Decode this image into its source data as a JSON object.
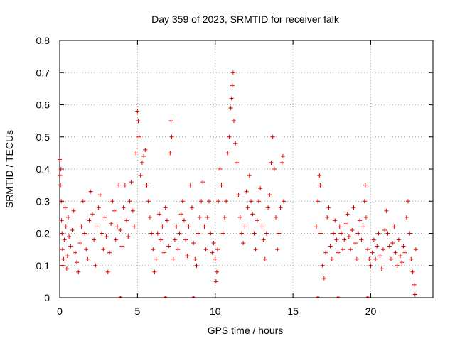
{
  "chart_data": {
    "type": "scatter",
    "title": "Day 359 of 2023, SRMTID for receiver falk",
    "xlabel": "GPS time / hours",
    "ylabel": "SRMTID / TECUs",
    "xlim": [
      0,
      24
    ],
    "ylim": [
      0,
      0.8
    ],
    "x_ticks": [
      0,
      5,
      10,
      15,
      20
    ],
    "y_ticks": [
      0,
      0.1,
      0.2,
      0.3,
      0.4,
      0.5,
      0.6,
      0.7,
      0.8
    ],
    "x_tick_labels": [
      "0",
      "5",
      "10",
      "15",
      "20"
    ],
    "y_tick_labels": [
      "0",
      "0.1",
      "0.2",
      "0.3",
      "0.4",
      "0.5",
      "0.6",
      "0.7",
      "0.8"
    ],
    "grid": true,
    "marker": "+",
    "color": "#e00000",
    "series": [
      {
        "name": "SRMTID",
        "points": [
          [
            0.0,
            0.43
          ],
          [
            0.02,
            0.38
          ],
          [
            0.05,
            0.35
          ],
          [
            0.08,
            0.4
          ],
          [
            0.1,
            0.3
          ],
          [
            0.12,
            0.24
          ],
          [
            0.15,
            0.2
          ],
          [
            0.18,
            0.15
          ],
          [
            0.2,
            0.1
          ],
          [
            0.25,
            0.12
          ],
          [
            0.3,
            0.18
          ],
          [
            0.35,
            0.28
          ],
          [
            0.4,
            0.22
          ],
          [
            0.45,
            0.09
          ],
          [
            0.5,
            0.13
          ],
          [
            0.55,
            0.25
          ],
          [
            0.6,
            0.19
          ],
          [
            0.7,
            0.16
          ],
          [
            0.8,
            0.21
          ],
          [
            0.9,
            0.27
          ],
          [
            1.0,
            0.14
          ],
          [
            1.1,
            0.11
          ],
          [
            1.2,
            0.08
          ],
          [
            1.3,
            0.17
          ],
          [
            1.4,
            0.22
          ],
          [
            1.5,
            0.3
          ],
          [
            1.6,
            0.2
          ],
          [
            1.7,
            0.15
          ],
          [
            1.8,
            0.12
          ],
          [
            1.9,
            0.24
          ],
          [
            2.0,
            0.33
          ],
          [
            2.1,
            0.26
          ],
          [
            2.2,
            0.18
          ],
          [
            2.3,
            0.1
          ],
          [
            2.4,
            0.22
          ],
          [
            2.5,
            0.28
          ],
          [
            2.6,
            0.32
          ],
          [
            2.7,
            0.2
          ],
          [
            2.8,
            0.15
          ],
          [
            2.9,
            0.25
          ],
          [
            3.0,
            0.19
          ],
          [
            3.1,
            0.08
          ],
          [
            3.2,
            0.14
          ],
          [
            3.3,
            0.23
          ],
          [
            3.4,
            0.3
          ],
          [
            3.5,
            0.27
          ],
          [
            3.6,
            0.18
          ],
          [
            3.7,
            0.22
          ],
          [
            3.8,
            0.35
          ],
          [
            3.9,
            0.21
          ],
          [
            4.0,
            0.16
          ],
          [
            4.1,
            0.28
          ],
          [
            4.2,
            0.35
          ],
          [
            4.3,
            0.24
          ],
          [
            4.4,
            0.19
          ],
          [
            4.5,
            0.3
          ],
          [
            4.6,
            0.36
          ],
          [
            4.7,
            0.27
          ],
          [
            4.8,
            0.22
          ],
          [
            4.9,
            0.45
          ],
          [
            5.0,
            0.58
          ],
          [
            5.05,
            0.55
          ],
          [
            5.1,
            0.5
          ],
          [
            5.2,
            0.38
          ],
          [
            5.3,
            0.42
          ],
          [
            5.4,
            0.44
          ],
          [
            5.5,
            0.46
          ],
          [
            5.6,
            0.35
          ],
          [
            5.7,
            0.3
          ],
          [
            5.8,
            0.25
          ],
          [
            5.9,
            0.2
          ],
          [
            6.0,
            0.15
          ],
          [
            6.1,
            0.08
          ],
          [
            6.2,
            0.12
          ],
          [
            6.3,
            0.2
          ],
          [
            6.4,
            0.26
          ],
          [
            6.5,
            0.18
          ],
          [
            6.6,
            0.22
          ],
          [
            6.7,
            0.14
          ],
          [
            6.8,
            0.28
          ],
          [
            6.9,
            0.24
          ],
          [
            7.0,
            0.16
          ],
          [
            7.1,
            0.45
          ],
          [
            7.15,
            0.55
          ],
          [
            7.2,
            0.5
          ],
          [
            7.3,
            0.12
          ],
          [
            7.4,
            0.18
          ],
          [
            7.5,
            0.22
          ],
          [
            7.6,
            0.15
          ],
          [
            7.7,
            0.2
          ],
          [
            7.8,
            0.26
          ],
          [
            7.9,
            0.3
          ],
          [
            8.0,
            0.24
          ],
          [
            8.1,
            0.18
          ],
          [
            8.2,
            0.13
          ],
          [
            8.3,
            0.22
          ],
          [
            8.4,
            0.35
          ],
          [
            8.5,
            0.28
          ],
          [
            8.6,
            0.17
          ],
          [
            8.7,
            0.12
          ],
          [
            8.8,
            0.1
          ],
          [
            8.9,
            0.2
          ],
          [
            9.0,
            0.25
          ],
          [
            9.1,
            0.3
          ],
          [
            9.2,
            0.36
          ],
          [
            9.3,
            0.22
          ],
          [
            9.4,
            0.15
          ],
          [
            9.5,
            0.25
          ],
          [
            9.6,
            0.3
          ],
          [
            9.7,
            0.2
          ],
          [
            9.8,
            0.14
          ],
          [
            9.9,
            0.17
          ],
          [
            10.0,
            0.12
          ],
          [
            10.05,
            0.05
          ],
          [
            10.1,
            0.08
          ],
          [
            10.15,
            0.15
          ],
          [
            10.2,
            0.3
          ],
          [
            10.3,
            0.4
          ],
          [
            10.4,
            0.35
          ],
          [
            10.5,
            0.2
          ],
          [
            10.6,
            0.25
          ],
          [
            10.7,
            0.3
          ],
          [
            10.8,
            0.45
          ],
          [
            10.9,
            0.5
          ],
          [
            11.0,
            0.59
          ],
          [
            11.05,
            0.62
          ],
          [
            11.1,
            0.66
          ],
          [
            11.15,
            0.7
          ],
          [
            11.2,
            0.55
          ],
          [
            11.3,
            0.48
          ],
          [
            11.4,
            0.42
          ],
          [
            11.5,
            0.32
          ],
          [
            11.6,
            0.25
          ],
          [
            11.7,
            0.2
          ],
          [
            11.8,
            0.17
          ],
          [
            11.9,
            0.22
          ],
          [
            12.0,
            0.33
          ],
          [
            12.1,
            0.28
          ],
          [
            12.2,
            0.38
          ],
          [
            12.3,
            0.3
          ],
          [
            12.4,
            0.26
          ],
          [
            12.5,
            0.2
          ],
          [
            12.6,
            0.15
          ],
          [
            12.7,
            0.24
          ],
          [
            12.8,
            0.3
          ],
          [
            12.9,
            0.34
          ],
          [
            13.0,
            0.22
          ],
          [
            13.1,
            0.18
          ],
          [
            13.2,
            0.12
          ],
          [
            13.3,
            0.2
          ],
          [
            13.4,
            0.28
          ],
          [
            13.5,
            0.32
          ],
          [
            13.6,
            0.42
          ],
          [
            13.7,
            0.5
          ],
          [
            13.8,
            0.4
          ],
          [
            13.9,
            0.25
          ],
          [
            14.0,
            0.15
          ],
          [
            14.1,
            0.2
          ],
          [
            14.2,
            0.28
          ],
          [
            14.3,
            0.42
          ],
          [
            14.35,
            0.44
          ],
          [
            14.4,
            0.3
          ],
          [
            16.5,
            0.22
          ],
          [
            16.6,
            0.3
          ],
          [
            16.7,
            0.38
          ],
          [
            16.75,
            0.35
          ],
          [
            16.8,
            0.2
          ],
          [
            16.9,
            0.1
          ],
          [
            17.0,
            0.06
          ],
          [
            17.1,
            0.14
          ],
          [
            17.2,
            0.25
          ],
          [
            17.3,
            0.28
          ],
          [
            17.4,
            0.16
          ],
          [
            17.5,
            0.12
          ],
          [
            17.6,
            0.2
          ],
          [
            17.7,
            0.24
          ],
          [
            17.8,
            0.18
          ],
          [
            17.9,
            0.14
          ],
          [
            18.0,
            0.22
          ],
          [
            18.1,
            0.2
          ],
          [
            18.2,
            0.15
          ],
          [
            18.3,
            0.18
          ],
          [
            18.4,
            0.23
          ],
          [
            18.5,
            0.26
          ],
          [
            18.6,
            0.19
          ],
          [
            18.7,
            0.15
          ],
          [
            18.8,
            0.21
          ],
          [
            18.9,
            0.28
          ],
          [
            19.0,
            0.17
          ],
          [
            19.1,
            0.12
          ],
          [
            19.2,
            0.2
          ],
          [
            19.3,
            0.24
          ],
          [
            19.4,
            0.18
          ],
          [
            19.5,
            0.22
          ],
          [
            19.6,
            0.3
          ],
          [
            19.65,
            0.35
          ],
          [
            19.7,
            0.25
          ],
          [
            19.8,
            0.15
          ],
          [
            19.9,
            0.12
          ],
          [
            20.0,
            0.1
          ],
          [
            20.1,
            0.14
          ],
          [
            20.2,
            0.18
          ],
          [
            20.3,
            0.12
          ],
          [
            20.4,
            0.16
          ],
          [
            20.5,
            0.2
          ],
          [
            20.6,
            0.13
          ],
          [
            20.7,
            0.09
          ],
          [
            20.8,
            0.15
          ],
          [
            20.9,
            0.21
          ],
          [
            21.0,
            0.27
          ],
          [
            21.1,
            0.2
          ],
          [
            21.2,
            0.16
          ],
          [
            21.3,
            0.12
          ],
          [
            21.4,
            0.17
          ],
          [
            21.5,
            0.22
          ],
          [
            21.6,
            0.14
          ],
          [
            21.7,
            0.1
          ],
          [
            21.8,
            0.18
          ],
          [
            21.9,
            0.13
          ],
          [
            22.0,
            0.11
          ],
          [
            22.1,
            0.16
          ],
          [
            22.2,
            0.14
          ],
          [
            22.3,
            0.25
          ],
          [
            22.4,
            0.3
          ],
          [
            22.5,
            0.2
          ],
          [
            22.6,
            0.12
          ],
          [
            22.7,
            0.08
          ],
          [
            22.8,
            0.04
          ],
          [
            22.85,
            0.01
          ],
          [
            22.9,
            0.15
          ]
        ]
      }
    ],
    "axis_markers": {
      "name": "zero-markers",
      "x": [
        3.9,
        6.8,
        8.6,
        16.6,
        17.9,
        19.8
      ]
    }
  }
}
